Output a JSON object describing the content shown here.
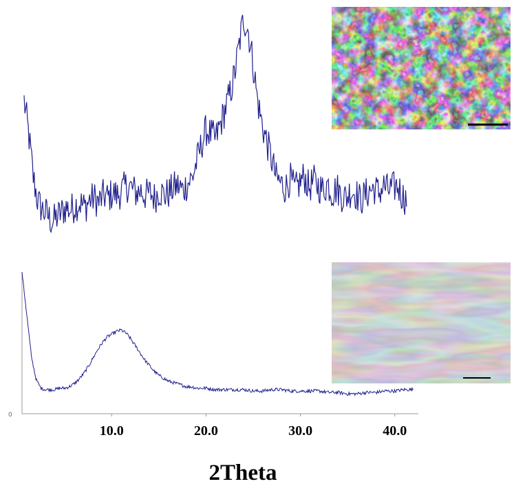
{
  "colors": {
    "trace": "#1f1f8c",
    "axis": "#999999",
    "background": "#ffffff"
  },
  "chart_data": [
    {
      "type": "line",
      "panel": "upper",
      "xlabel": "",
      "ylabel": "",
      "xlim": [
        0.5,
        42.5
      ],
      "ylim": [
        0,
        100
      ],
      "grid": false,
      "x": [
        0.5,
        1.0,
        1.5,
        2.0,
        2.5,
        3.0,
        3.5,
        4.0,
        4.5,
        5.0,
        5.5,
        6.0,
        6.5,
        7.0,
        7.5,
        8.0,
        8.5,
        9.0,
        9.5,
        10.0,
        10.5,
        11.0,
        11.5,
        12.0,
        12.5,
        13.0,
        13.5,
        14.0,
        14.5,
        15.0,
        15.5,
        16.0,
        16.5,
        17.0,
        17.5,
        18.0,
        18.5,
        19.0,
        19.5,
        20.0,
        20.5,
        21.0,
        21.5,
        22.0,
        22.5,
        23.0,
        23.5,
        24.0,
        24.5,
        25.0,
        25.5,
        26.0,
        26.5,
        27.0,
        27.5,
        28.0,
        28.5,
        29.0,
        29.5,
        30.0,
        30.5,
        31.0,
        31.5,
        32.0,
        32.5,
        33.0,
        33.5,
        34.0,
        34.5,
        35.0,
        35.5,
        36.0,
        36.5,
        37.0,
        37.5,
        38.0,
        38.5,
        39.0,
        39.5,
        40.0,
        40.5,
        41.0,
        41.5
      ],
      "values": [
        62,
        48,
        30,
        20,
        17,
        15,
        12,
        14,
        16,
        18,
        17,
        19,
        20,
        18,
        21,
        22,
        20,
        23,
        22,
        24,
        23,
        25,
        27,
        26,
        24,
        25,
        23,
        24,
        22,
        25,
        23,
        24,
        26,
        27,
        25,
        28,
        30,
        37,
        44,
        50,
        48,
        46,
        52,
        58,
        64,
        72,
        84,
        96,
        91,
        78,
        62,
        52,
        45,
        38,
        30,
        28,
        26,
        30,
        25,
        28,
        31,
        26,
        29,
        27,
        25,
        28,
        24,
        26,
        23,
        22,
        25,
        24,
        21,
        23,
        25,
        26,
        24,
        27,
        25,
        26,
        27,
        23,
        21
      ],
      "noise": 7
    },
    {
      "type": "line",
      "panel": "lower",
      "xlabel": "2Theta",
      "ylabel": "",
      "xlim": [
        0.5,
        42.5
      ],
      "ylim": [
        0,
        100
      ],
      "grid": false,
      "ytick_labels": [
        "0"
      ],
      "xtick_values": [
        10,
        20,
        30,
        40
      ],
      "xtick_labels": [
        "10.0",
        "20.0",
        "30.0",
        "40.0"
      ],
      "x": [
        0.5,
        1.0,
        1.5,
        2.0,
        2.5,
        3.0,
        3.5,
        4.0,
        4.5,
        5.0,
        5.5,
        6.0,
        6.5,
        7.0,
        7.5,
        8.0,
        8.5,
        9.0,
        9.5,
        10.0,
        10.5,
        11.0,
        11.5,
        12.0,
        12.5,
        13.0,
        13.5,
        14.0,
        14.5,
        15.0,
        15.5,
        16.0,
        16.5,
        17.0,
        17.5,
        18.0,
        18.5,
        19.0,
        19.5,
        20.0,
        21.0,
        22.0,
        23.0,
        24.0,
        25.0,
        26.0,
        27.0,
        28.0,
        29.0,
        30.0,
        31.0,
        32.0,
        33.0,
        34.0,
        35.0,
        36.0,
        37.0,
        38.0,
        39.0,
        40.0,
        41.0,
        42.0
      ],
      "values": [
        100,
        70,
        40,
        24,
        18,
        17,
        17,
        17,
        18,
        18,
        19,
        21,
        24,
        28,
        33,
        39,
        45,
        50,
        54,
        56,
        58,
        59,
        57,
        53,
        48,
        43,
        38,
        34,
        30,
        27,
        25,
        23,
        22,
        21,
        20,
        19,
        19,
        18,
        18,
        18,
        17,
        17,
        17,
        17,
        16,
        16,
        17,
        17,
        16,
        16,
        16,
        16,
        15,
        15,
        14,
        14,
        15,
        15,
        16,
        16,
        17,
        17
      ],
      "noise": 1.2
    }
  ],
  "images": [
    {
      "name": "sem-image-porous",
      "style": "porous network micrograph"
    },
    {
      "name": "sem-image-sheets",
      "style": "wrinkled sheet micrograph"
    }
  ]
}
